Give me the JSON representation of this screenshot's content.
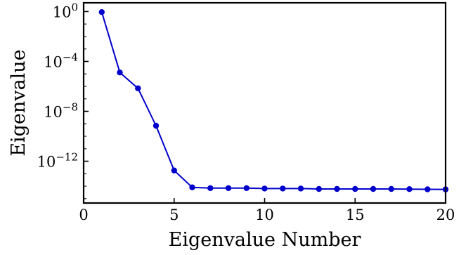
{
  "chart_data": {
    "type": "line",
    "title": "",
    "xlabel": "Eigenvalue Number",
    "ylabel": "Eigenvalue",
    "xlim": [
      0,
      20
    ],
    "ylim_log10": [
      -15.35,
      0.7
    ],
    "y_scale": "log",
    "grid": false,
    "x_ticks": [
      0,
      5,
      10,
      15,
      20
    ],
    "x_tick_labels": [
      "0",
      "5",
      "10",
      "15",
      "20"
    ],
    "y_ticks_log10": [
      0,
      -4,
      -8,
      -12
    ],
    "y_tick_labels": [
      {
        "base": "10",
        "exp": "0"
      },
      {
        "base": "10",
        "exp": "−4"
      },
      {
        "base": "10",
        "exp": "−8"
      },
      {
        "base": "10",
        "exp": "−12"
      }
    ],
    "series": [
      {
        "color": "#0000cc",
        "marker": "circle",
        "x": [
          1,
          2,
          3,
          4,
          5,
          6,
          7,
          8,
          9,
          10,
          11,
          12,
          13,
          14,
          15,
          16,
          17,
          18,
          19,
          20
        ],
        "y": [
          0.9,
          1.3e-05,
          7e-07,
          7e-10,
          1.8e-13,
          8e-15,
          7e-15,
          7e-15,
          7e-15,
          6.5e-15,
          6.5e-15,
          6.5e-15,
          6e-15,
          6e-15,
          6e-15,
          6e-15,
          6e-15,
          5.8e-15,
          5.6e-15,
          5.5e-15
        ]
      }
    ]
  }
}
